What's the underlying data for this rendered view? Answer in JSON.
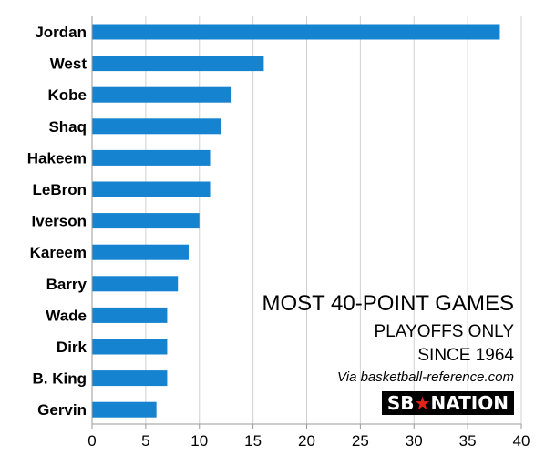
{
  "chart_data": {
    "type": "bar",
    "orientation": "horizontal",
    "categories": [
      "Jordan",
      "West",
      "Kobe",
      "Shaq",
      "Hakeem",
      "LeBron",
      "Iverson",
      "Kareem",
      "Barry",
      "Wade",
      "Dirk",
      "B. King",
      "Gervin"
    ],
    "values": [
      38,
      16,
      13,
      12,
      11,
      11,
      10,
      9,
      8,
      7,
      7,
      7,
      6
    ],
    "title": "MOST 40-POINT GAMES",
    "subtitle_lines": [
      "PLAYOFFS ONLY",
      "SINCE 1964"
    ],
    "source": "Via basketball-reference.com",
    "xlabel": "",
    "ylabel": "",
    "xlim": [
      0,
      40
    ],
    "xticks": [
      0,
      5,
      10,
      15,
      20,
      25,
      30,
      35,
      40
    ],
    "grid": true,
    "bar_color": "#1583cf"
  },
  "brand": {
    "text": "SBNATION",
    "star_color": "#e6231b"
  }
}
